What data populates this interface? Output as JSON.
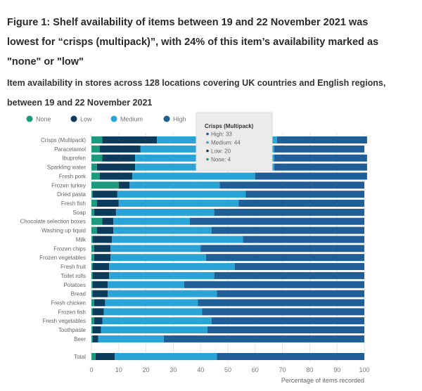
{
  "title": "Figure 1: Shelf availability of items between 19 and 22 November 2021 was lowest for “crisps (multipack)”, with 24% of this item’s availability marked as \"none\" or \"low\"",
  "subtitle": "Item availability in stores across 128 locations covering UK countries and English regions, between 19 and 22 November 2021",
  "chart_data": {
    "type": "bar",
    "orientation": "horizontal",
    "stacked": true,
    "xlabel": "Percentage of items recorded",
    "xlim": [
      0,
      100
    ],
    "xticks": [
      0,
      10,
      20,
      30,
      40,
      50,
      60,
      70,
      80,
      90,
      100
    ],
    "grid": true,
    "legend_position": "top-left",
    "categories": [
      "Crisps (Multipack)",
      "Paracetamol",
      "Ibuprofen",
      "Sparkling water",
      "Fresh pork",
      "Frozen turkey",
      "Dried pasta",
      "Fresh fish",
      "Soap",
      "Chocolate selection boxes",
      "Washing up liquid",
      "Milk",
      "Frozen chips",
      "Frozen vegetables",
      "Fresh fruit",
      "Toilet rolls",
      "Potatoes",
      "Bread",
      "Fresh chicken",
      "Frozen fish",
      "Fresh vegetables",
      "Toothpaste",
      "Beer",
      "Total"
    ],
    "series": [
      {
        "name": "None",
        "color": "#1b9a7c",
        "values": [
          4,
          3,
          4,
          2,
          3,
          10,
          0.5,
          2,
          1,
          4,
          2,
          0.5,
          1,
          1,
          0.5,
          0.5,
          0.5,
          0.5,
          1,
          0.5,
          1,
          0.5,
          0.5,
          1.5
        ]
      },
      {
        "name": "Low",
        "color": "#0d3b5c",
        "values": [
          20,
          15,
          12,
          14,
          12,
          4,
          9,
          8,
          8,
          4,
          6,
          7,
          6,
          6,
          6,
          6,
          5.5,
          5.5,
          4,
          4,
          3,
          3,
          2,
          7
        ]
      },
      {
        "name": "Medium",
        "color": "#2aa4d6",
        "values": [
          44,
          49,
          51,
          51,
          45,
          33,
          47,
          44,
          36,
          28,
          36,
          48,
          33,
          35,
          46,
          38.5,
          28,
          40,
          34,
          36,
          40,
          39,
          24,
          37.5
        ]
      },
      {
        "name": "High",
        "color": "#1f5e97",
        "values": [
          33,
          33,
          34,
          34,
          41,
          53,
          43.5,
          46,
          55,
          64,
          56,
          44.5,
          60,
          58,
          47.5,
          55,
          66,
          54,
          61,
          59.5,
          56,
          57.5,
          73.5,
          54
        ]
      }
    ],
    "tooltip": {
      "title": "Crisps (Multipack)",
      "lines": [
        "High: 33",
        "Medium: 44",
        "Low: 20",
        "None: 4"
      ]
    }
  }
}
